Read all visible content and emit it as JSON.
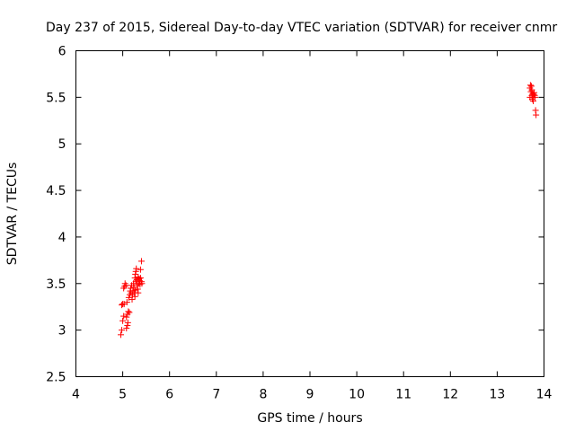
{
  "chart_data": {
    "type": "scatter",
    "title": "Day 237 of 2015, Sidereal Day-to-day VTEC variation (SDTVAR) for receiver cnmr",
    "xlabel": "GPS time / hours",
    "ylabel": "SDTVAR / TECUs",
    "xlim": [
      4,
      14
    ],
    "ylim": [
      2.5,
      6
    ],
    "xticks": [
      "4",
      "5",
      "6",
      "7",
      "8",
      "9",
      "10",
      "11",
      "12",
      "13",
      "14"
    ],
    "yticks": [
      "2.5",
      "3",
      "3.5",
      "4",
      "4.5",
      "5",
      "5.5",
      "6"
    ],
    "marker": "+",
    "color": "#ff0000",
    "points": [
      [
        4.96,
        2.95
      ],
      [
        4.98,
        3.0
      ],
      [
        5.0,
        3.1
      ],
      [
        5.02,
        3.15
      ],
      [
        5.0,
        3.28
      ],
      [
        4.98,
        3.27
      ],
      [
        5.03,
        3.28
      ],
      [
        5.02,
        3.45
      ],
      [
        5.04,
        3.47
      ],
      [
        5.05,
        3.5
      ],
      [
        5.07,
        3.48
      ],
      [
        5.08,
        3.02
      ],
      [
        5.1,
        3.05
      ],
      [
        5.11,
        3.08
      ],
      [
        5.08,
        3.14
      ],
      [
        5.1,
        3.17
      ],
      [
        5.12,
        3.2
      ],
      [
        5.14,
        3.19
      ],
      [
        5.09,
        3.3
      ],
      [
        5.13,
        3.35
      ],
      [
        5.15,
        3.38
      ],
      [
        5.16,
        3.42
      ],
      [
        5.18,
        3.4
      ],
      [
        5.17,
        3.45
      ],
      [
        5.2,
        3.33
      ],
      [
        5.21,
        3.38
      ],
      [
        5.22,
        3.42
      ],
      [
        5.19,
        3.48
      ],
      [
        5.23,
        3.5
      ],
      [
        5.24,
        3.46
      ],
      [
        5.25,
        3.4
      ],
      [
        5.26,
        3.36
      ],
      [
        5.27,
        3.43
      ],
      [
        5.28,
        3.52
      ],
      [
        5.26,
        3.56
      ],
      [
        5.27,
        3.6
      ],
      [
        5.28,
        3.63
      ],
      [
        5.29,
        3.66
      ],
      [
        5.3,
        3.54
      ],
      [
        5.31,
        3.48
      ],
      [
        5.32,
        3.44
      ],
      [
        5.33,
        3.4
      ],
      [
        5.34,
        3.5
      ],
      [
        5.35,
        3.55
      ],
      [
        5.33,
        3.57
      ],
      [
        5.36,
        3.53
      ],
      [
        5.37,
        3.49
      ],
      [
        5.38,
        3.56
      ],
      [
        5.4,
        3.52
      ],
      [
        5.41,
        3.5
      ],
      [
        5.38,
        3.65
      ],
      [
        5.4,
        3.74
      ],
      [
        13.7,
        5.6
      ],
      [
        13.71,
        5.63
      ],
      [
        13.73,
        5.62
      ],
      [
        13.72,
        5.56
      ],
      [
        13.74,
        5.52
      ],
      [
        13.7,
        5.5
      ],
      [
        13.75,
        5.48
      ],
      [
        13.76,
        5.5
      ],
      [
        13.78,
        5.53
      ],
      [
        13.79,
        5.55
      ],
      [
        13.8,
        5.52
      ],
      [
        13.81,
        5.5
      ],
      [
        13.77,
        5.46
      ],
      [
        13.82,
        5.36
      ],
      [
        13.83,
        5.31
      ],
      [
        13.74,
        5.58
      ],
      [
        13.76,
        5.54
      ]
    ]
  }
}
